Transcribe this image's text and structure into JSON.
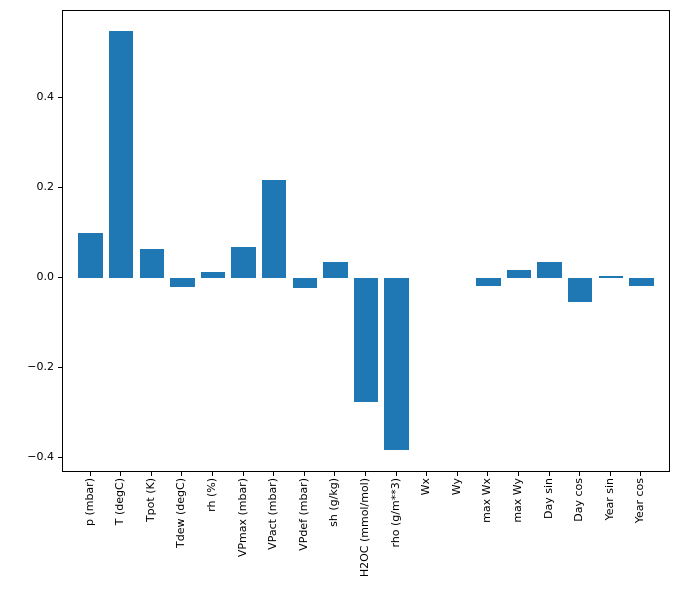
{
  "figure": {
    "background": "#ffffff",
    "spine_color": "#000000"
  },
  "chart_data": {
    "type": "bar",
    "title": "",
    "xlabel": "",
    "ylabel": "",
    "categories": [
      "p (mbar)",
      "T (degC)",
      "Tpot (K)",
      "Tdew (degC)",
      "rh (%)",
      "VPmax (mbar)",
      "VPact (mbar)",
      "VPdef (mbar)",
      "sh (g/kg)",
      "H2OC (mmol/mol)",
      "rho (g/m**3)",
      "Wx",
      "Wy",
      "max Wx",
      "max Wy",
      "Day sin",
      "Day cos",
      "Year sin",
      "Year cos"
    ],
    "values": [
      0.1,
      0.549,
      0.064,
      -0.02,
      0.013,
      0.069,
      0.218,
      -0.022,
      0.035,
      -0.276,
      -0.384,
      0.0,
      0.0,
      -0.018,
      0.017,
      0.035,
      -0.055,
      0.004,
      -0.018
    ],
    "bar_color": "#1f77b4",
    "ylim": [
      -0.43,
      0.593
    ],
    "yticks": [
      -0.4,
      -0.2,
      0.0,
      0.2,
      0.4
    ],
    "ytick_labels": [
      "−0.4",
      "−0.2",
      "0.0",
      "0.2",
      "0.4"
    ],
    "bar_width_fraction": 0.8,
    "x_margin": 0.9,
    "grid": false,
    "legend": false
  }
}
